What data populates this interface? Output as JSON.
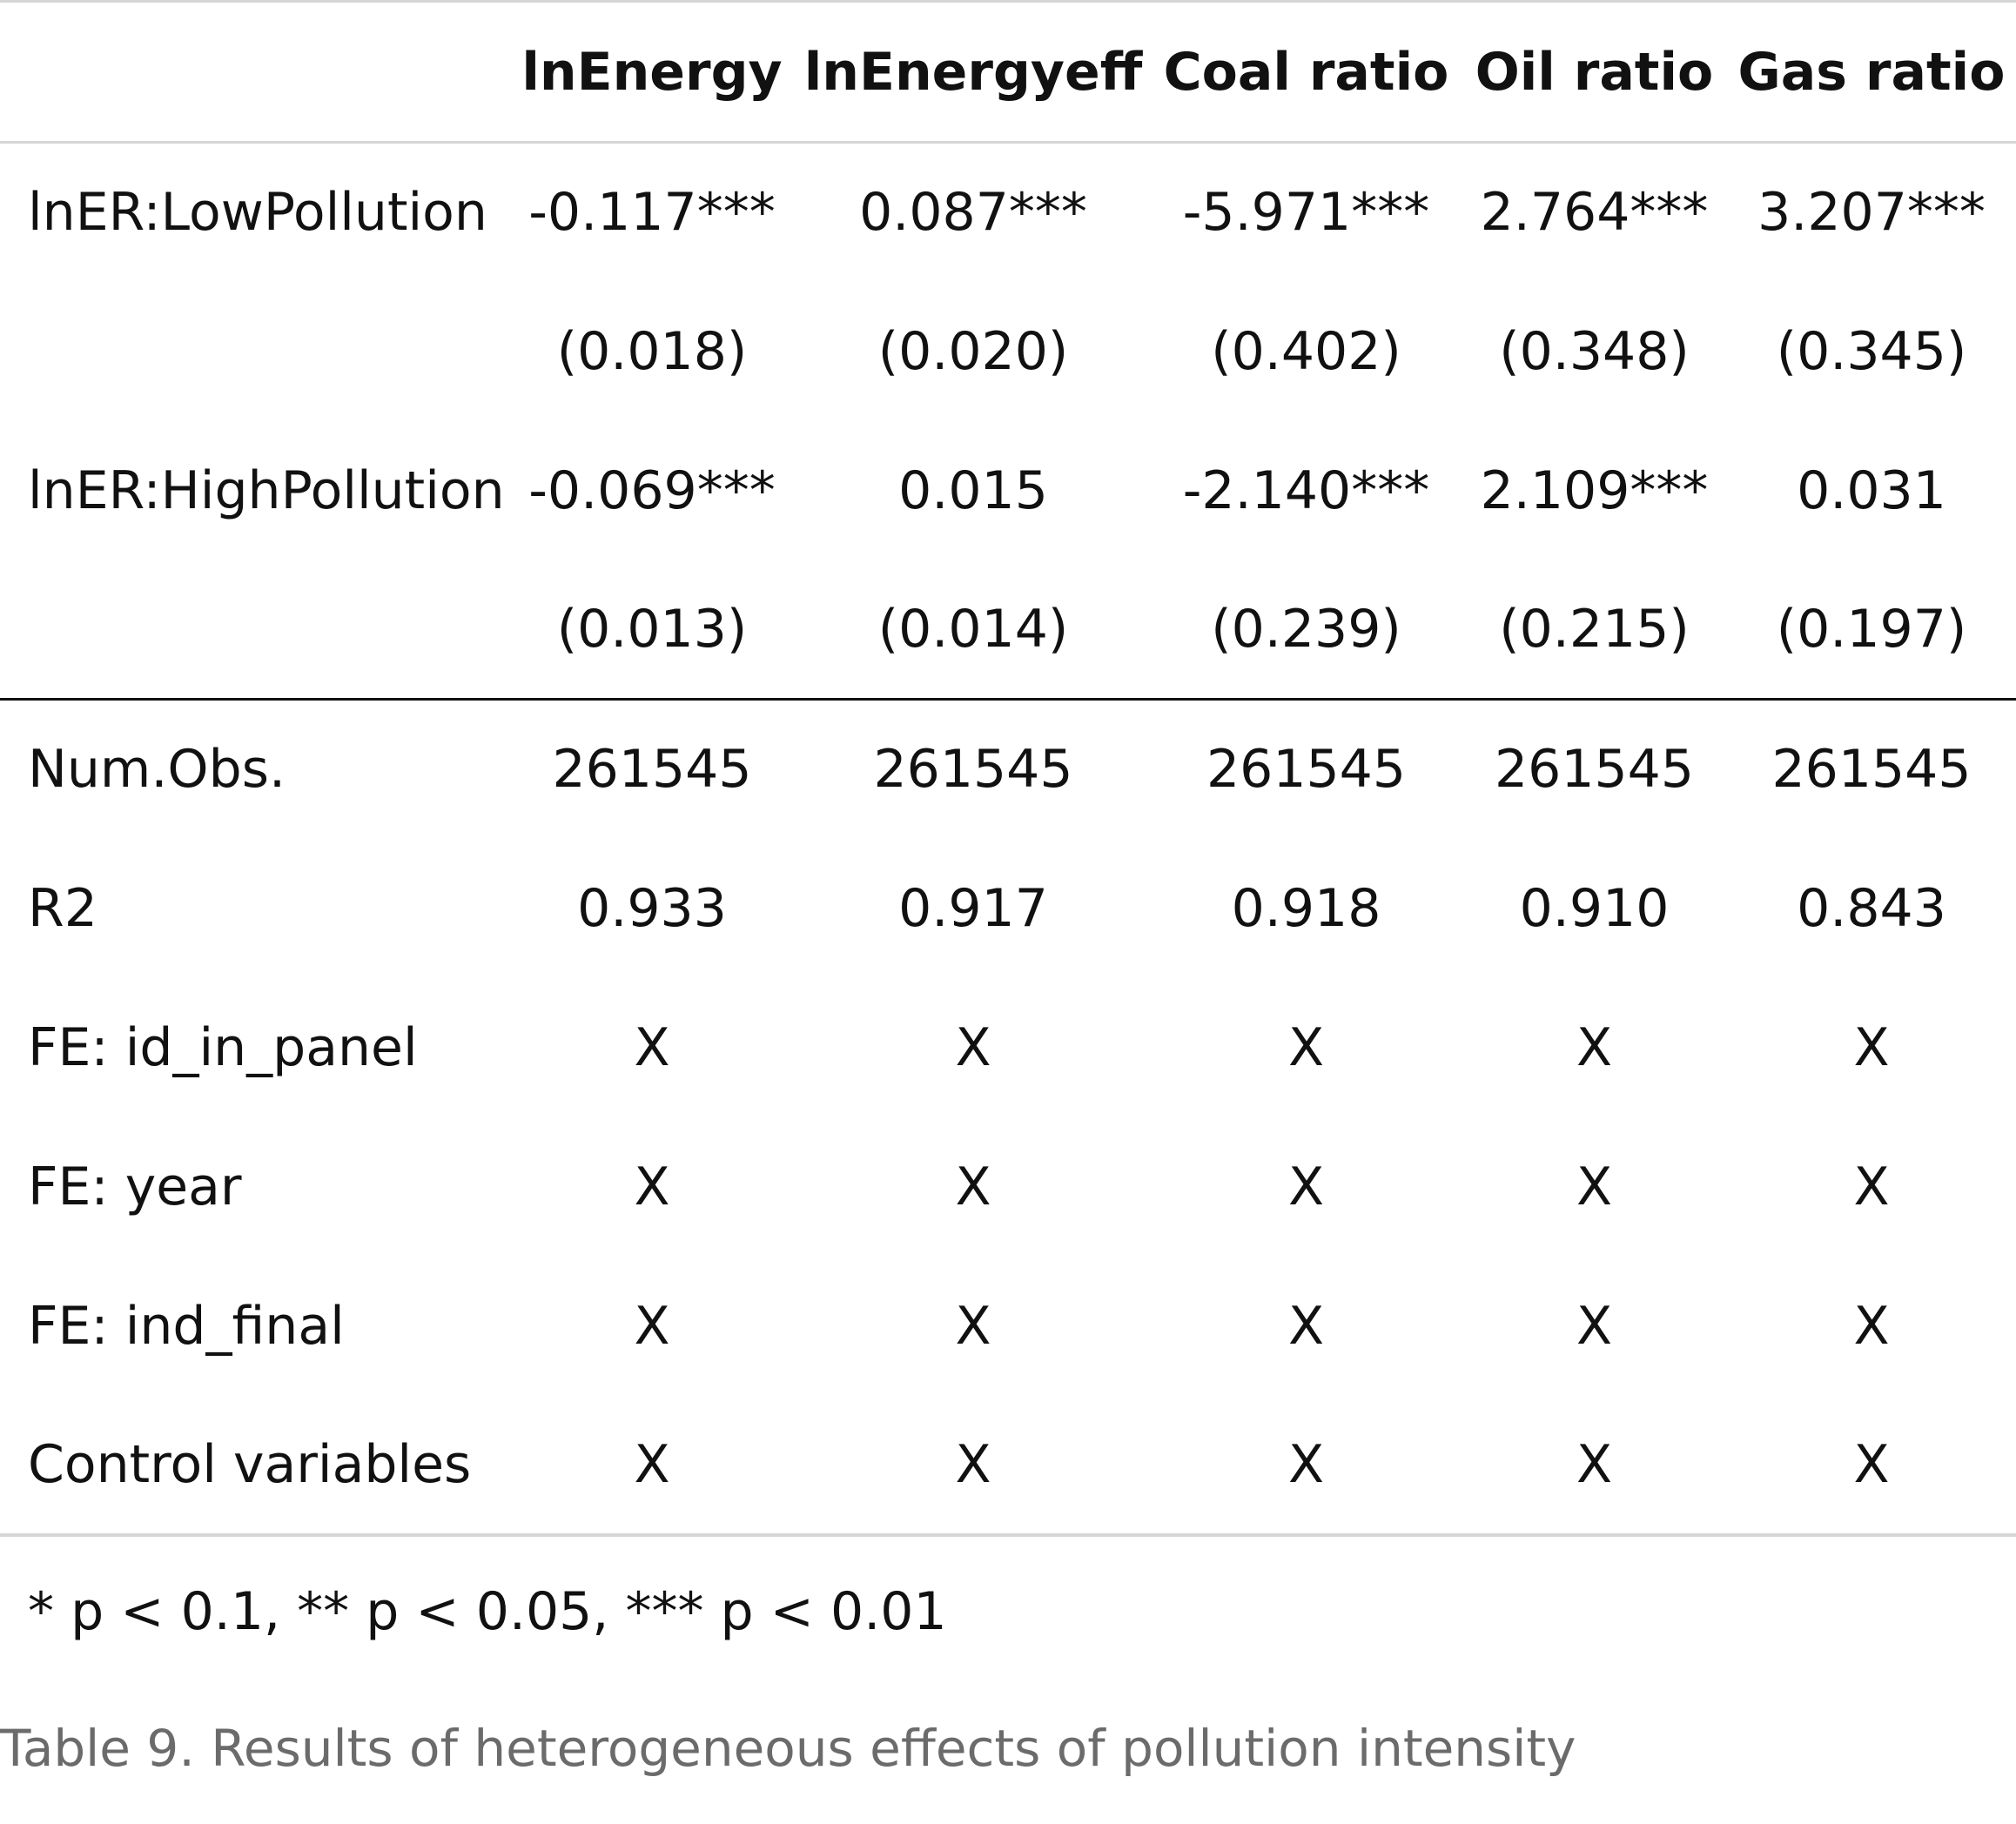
{
  "table": {
    "columns": [
      "",
      "lnEnergy",
      "lnEnergyeff",
      "Coal ratio",
      "Oil ratio",
      "Gas ratio"
    ],
    "coefficient_rows": [
      {
        "label": "lnER:LowPollution",
        "values": [
          "-0.117***",
          "0.087***",
          "-5.971***",
          "2.764***",
          "3.207***"
        ]
      },
      {
        "label": "",
        "values": [
          "(0.018)",
          "(0.020)",
          "(0.402)",
          "(0.348)",
          "(0.345)"
        ]
      },
      {
        "label": "lnER:HighPollution",
        "values": [
          "-0.069***",
          "0.015",
          "-2.140***",
          "2.109***",
          "0.031"
        ]
      },
      {
        "label": "",
        "values": [
          "(0.013)",
          "(0.014)",
          "(0.239)",
          "(0.215)",
          "(0.197)"
        ]
      }
    ],
    "stat_rows": [
      {
        "label": "Num.Obs.",
        "values": [
          "261545",
          "261545",
          "261545",
          "261545",
          "261545"
        ]
      },
      {
        "label": "R2",
        "values": [
          "0.933",
          "0.917",
          "0.918",
          "0.910",
          "0.843"
        ]
      },
      {
        "label": "FE: id_in_panel",
        "values": [
          "X",
          "X",
          "X",
          "X",
          "X"
        ]
      },
      {
        "label": "FE: year",
        "values": [
          "X",
          "X",
          "X",
          "X",
          "X"
        ]
      },
      {
        "label": "FE: ind_final",
        "values": [
          "X",
          "X",
          "X",
          "X",
          "X"
        ]
      },
      {
        "label": "Control variables",
        "values": [
          "X",
          "X",
          "X",
          "X",
          "X"
        ]
      }
    ],
    "note": "* p < 0.1, ** p < 0.05, *** p < 0.01"
  },
  "caption": "Table 9. Results of heterogeneous effects of pollution intensity"
}
